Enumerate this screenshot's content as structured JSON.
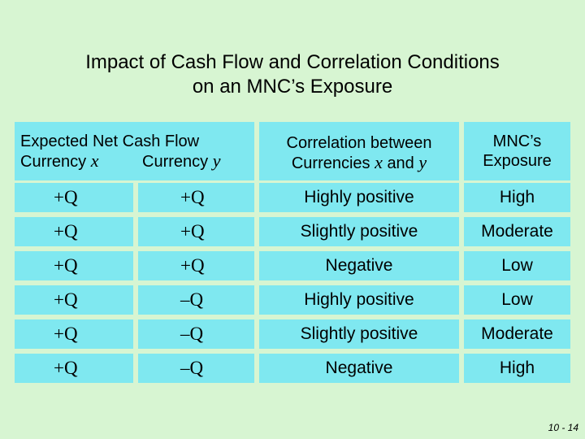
{
  "title": {
    "line1": "Impact of Cash Flow and Correlation Conditions",
    "line2": "on an MNC’s Exposure"
  },
  "table": {
    "headers": {
      "cash_flow": {
        "line1": "Expected Net Cash Flow",
        "currency_label": "Currency",
        "x": "x",
        "y": "y"
      },
      "correlation": {
        "line1": "Correlation between",
        "currencies_label": "Currencies",
        "x": "x",
        "and": "and",
        "y": "y"
      },
      "exposure": {
        "line1": "MNC’s",
        "line2": "Exposure"
      }
    },
    "rows": [
      {
        "cfx": "+Q",
        "cfy": "+Q",
        "correlation": "Highly positive",
        "exposure": "High"
      },
      {
        "cfx": "+Q",
        "cfy": "+Q",
        "correlation": "Slightly positive",
        "exposure": "Moderate"
      },
      {
        "cfx": "+Q",
        "cfy": "+Q",
        "correlation": "Negative",
        "exposure": "Low"
      },
      {
        "cfx": "+Q",
        "cfy": "–Q",
        "correlation": "Highly positive",
        "exposure": "Low"
      },
      {
        "cfx": "+Q",
        "cfy": "–Q",
        "correlation": "Slightly positive",
        "exposure": "Moderate"
      },
      {
        "cfx": "+Q",
        "cfy": "–Q",
        "correlation": "Negative",
        "exposure": "High"
      }
    ]
  },
  "page_number": "10 - 14"
}
